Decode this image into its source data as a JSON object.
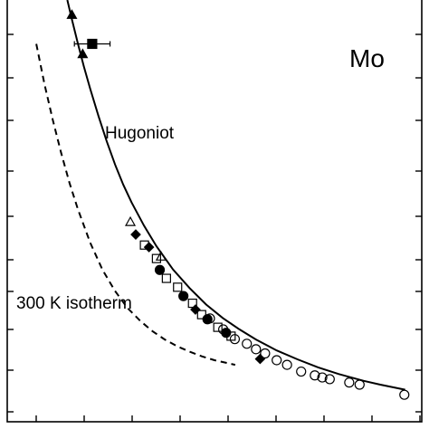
{
  "chart_data": {
    "type": "line",
    "title": "",
    "xlabel": "",
    "ylabel": "",
    "xlim": [
      0,
      100
    ],
    "ylim": [
      0,
      100
    ],
    "grid": false,
    "annotations": {
      "element": "Mo",
      "hugoniot_label": "Hugoniot",
      "isotherm_label": "300 K isotherm"
    },
    "series": [
      {
        "name": "Hugoniot",
        "style": "solid",
        "x": [
          14.5,
          15.5,
          17,
          18.5,
          20,
          22,
          24,
          26,
          28,
          30,
          33,
          36,
          40,
          44,
          48,
          52,
          56,
          60,
          65,
          70,
          75,
          80,
          86,
          90,
          96
        ],
        "y": [
          100,
          95.8,
          89.8,
          84.2,
          79.0,
          72.5,
          66.5,
          61.0,
          56.2,
          52.0,
          46.5,
          41.6,
          36.1,
          31.7,
          27.8,
          24.6,
          21.9,
          19.5,
          16.9,
          14.8,
          12.9,
          11.3,
          9.7,
          8.8,
          7.6
        ]
      },
      {
        "name": "300 K isotherm",
        "style": "dashed",
        "x": [
          7,
          9,
          11,
          13,
          15,
          17,
          20,
          23,
          26,
          29,
          32,
          35,
          38,
          41,
          44,
          47,
          50,
          55
        ],
        "y": [
          89.6,
          80.0,
          71.5,
          63.8,
          56.7,
          50.5,
          42.5,
          36.0,
          31.0,
          27.0,
          24.0,
          21.5,
          19.5,
          17.9,
          16.6,
          15.5,
          14.6,
          13.5
        ]
      },
      {
        "name": "filled triangles",
        "marker": "triangle-filled",
        "x": [
          15.6,
          18.2
        ],
        "y": [
          96.5,
          87.2
        ]
      },
      {
        "name": "filled square",
        "marker": "square-filled",
        "x": [
          20.5
        ],
        "y": [
          89.6
        ],
        "xerr": [
          4.3
        ]
      },
      {
        "name": "filled circles",
        "marker": "circle-filled",
        "x": [
          36.8,
          42.5,
          48.3,
          52.8
        ],
        "y": [
          36.0,
          29.8,
          24.3,
          21.1
        ]
      },
      {
        "name": "filled diamonds",
        "marker": "diamond-filled",
        "x": [
          31.0,
          34.2,
          45.4,
          61.0
        ],
        "y": [
          44.4,
          41.4,
          26.6,
          14.9
        ]
      },
      {
        "name": "open triangles",
        "marker": "triangle-open",
        "x": [
          29.7,
          37.1
        ],
        "y": [
          47.4,
          39.2
        ]
      },
      {
        "name": "open squares",
        "marker": "square-open",
        "x": [
          33.1,
          36.0,
          38.4,
          41.1,
          44.7,
          46.9,
          50.8,
          54.0
        ],
        "y": [
          41.9,
          38.7,
          34.0,
          31.9,
          28.1,
          25.4,
          22.4,
          20.3
        ]
      },
      {
        "name": "open circles",
        "marker": "circle-open",
        "x": [
          48.9,
          52.1,
          54.9,
          57.8,
          60.0,
          62.2,
          65.0,
          67.5,
          70.9,
          74.2,
          76.0,
          77.8,
          82.5,
          85.0,
          95.8
        ],
        "y": [
          24.5,
          21.9,
          19.6,
          18.5,
          17.2,
          16.2,
          14.6,
          13.5,
          11.9,
          11.0,
          10.5,
          10.1,
          9.3,
          8.8,
          6.4
        ]
      }
    ]
  }
}
